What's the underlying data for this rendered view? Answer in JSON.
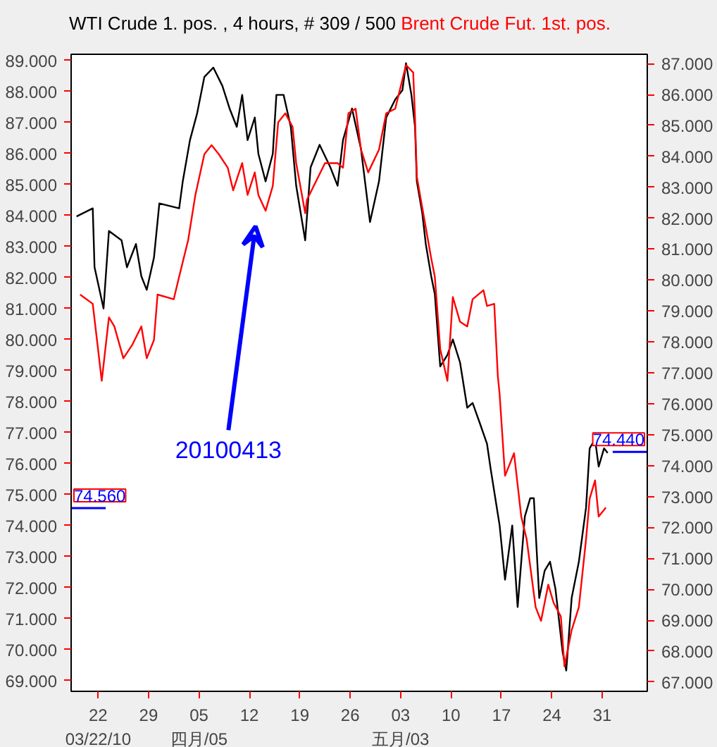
{
  "chart_data": {
    "type": "line",
    "legend": "top",
    "marker": "none",
    "line_style": "solid",
    "grid": false,
    "xlim": [
      "2010-03-18T06:00",
      "2010-06-06T06:00"
    ],
    "xticks": [
      {
        "value": "2010-03-22",
        "label": "22\n03/22/10"
      },
      {
        "value": "2010-03-29",
        "label": "29"
      },
      {
        "value": "2010-04-05",
        "label": "05\n四月/05"
      },
      {
        "value": "2010-04-12",
        "label": "12"
      },
      {
        "value": "2010-04-19",
        "label": "19"
      },
      {
        "value": "2010-04-26",
        "label": "26"
      },
      {
        "value": "2010-05-03",
        "label": "03\n五月/03"
      },
      {
        "value": "2010-05-10",
        "label": "10"
      },
      {
        "value": "2010-05-17",
        "label": "17"
      },
      {
        "value": "2010-05-24",
        "label": "24"
      },
      {
        "value": "2010-05-31",
        "label": "31"
      }
    ],
    "ylim": [
      68.65,
      89.2
    ],
    "yticks": [
      {
        "value": 69,
        "label": "69.000"
      },
      {
        "value": 70,
        "label": "70.000"
      },
      {
        "value": 71,
        "label": "71.000"
      },
      {
        "value": 72,
        "label": "72.000"
      },
      {
        "value": 73,
        "label": "73.000"
      },
      {
        "value": 74,
        "label": "74.000"
      },
      {
        "value": 75,
        "label": "75.000"
      },
      {
        "value": 76,
        "label": "76.000"
      },
      {
        "value": 77,
        "label": "77.000"
      },
      {
        "value": 78,
        "label": "78.000"
      },
      {
        "value": 79,
        "label": "79.000"
      },
      {
        "value": 80,
        "label": "80.000"
      },
      {
        "value": 81,
        "label": "81.000"
      },
      {
        "value": 82,
        "label": "82.000"
      },
      {
        "value": 83,
        "label": "83.000"
      },
      {
        "value": 84,
        "label": "84.000"
      },
      {
        "value": 85,
        "label": "85.000"
      },
      {
        "value": 86,
        "label": "86.000"
      },
      {
        "value": 87,
        "label": "87.000"
      },
      {
        "value": 88,
        "label": "88.000"
      },
      {
        "value": 89,
        "label": "89.000"
      }
    ],
    "y2lim": [
      66.7,
      87.3
    ],
    "y2ticks": [
      {
        "value": 67,
        "label": "67.000"
      },
      {
        "value": 68,
        "label": "68.000"
      },
      {
        "value": 69,
        "label": "69.000"
      },
      {
        "value": 70,
        "label": "70.000"
      },
      {
        "value": 71,
        "label": "71.000"
      },
      {
        "value": 72,
        "label": "72.000"
      },
      {
        "value": 73,
        "label": "73.000"
      },
      {
        "value": 74,
        "label": "74.000"
      },
      {
        "value": 75,
        "label": "75.000"
      },
      {
        "value": 76,
        "label": "76.000"
      },
      {
        "value": 77,
        "label": "77.000"
      },
      {
        "value": 78,
        "label": "78.000"
      },
      {
        "value": 79,
        "label": "79.000"
      },
      {
        "value": 80,
        "label": "80.000"
      },
      {
        "value": 81,
        "label": "81.000"
      },
      {
        "value": 82,
        "label": "82.000"
      },
      {
        "value": 83,
        "label": "83.000"
      },
      {
        "value": 84,
        "label": "84.000"
      },
      {
        "value": 85,
        "label": "85.000"
      },
      {
        "value": 86,
        "label": "86.000"
      },
      {
        "value": 87,
        "label": "87.000"
      }
    ],
    "series": [
      {
        "name": "WTI Crude 1. pos. , 4 hours, # 309 / 500",
        "color": "#000000",
        "axis": "y",
        "x": [
          "2010-03-19T00:00",
          "2010-03-21T06:00",
          "2010-03-21T12:00",
          "2010-03-22T18:00",
          "2010-03-23T12:00",
          "2010-03-25T06:00",
          "2010-03-26T00:00",
          "2010-03-27T06:00",
          "2010-03-28T00:00",
          "2010-03-28T18:00",
          "2010-03-29T18:00",
          "2010-03-30T12:00",
          "2010-04-02T06:00",
          "2010-04-02T18:00",
          "2010-04-03T18:00",
          "2010-04-04T18:00",
          "2010-04-05T18:00",
          "2010-04-07T00:00",
          "2010-04-08T06:00",
          "2010-04-09T06:00",
          "2010-04-10T06:00",
          "2010-04-11T00:00",
          "2010-04-11T18:00",
          "2010-04-12T18:00",
          "2010-04-13T06:00",
          "2010-04-14T06:00",
          "2010-04-15T06:00",
          "2010-04-15T18:00",
          "2010-04-16T18:00",
          "2010-04-17T18:00",
          "2010-04-18T12:00",
          "2010-04-19T18:00",
          "2010-04-20T12:00",
          "2010-04-21T18:00",
          "2010-04-23T06:00",
          "2010-04-24T06:00",
          "2010-04-25T00:00",
          "2010-04-26T06:00",
          "2010-04-27T12:00",
          "2010-04-28T18:00",
          "2010-04-30T00:00",
          "2010-05-01T00:00",
          "2010-05-02T06:00",
          "2010-05-03T06:00",
          "2010-05-03T18:00",
          "2010-05-04T12:00",
          "2010-05-05T00:00",
          "2010-05-05T06:00",
          "2010-05-06T00:00",
          "2010-05-06T12:00",
          "2010-05-07T06:00",
          "2010-05-07T18:00",
          "2010-05-08T12:00",
          "2010-05-09T12:00",
          "2010-05-10T06:00",
          "2010-05-11T06:00",
          "2010-05-12T06:00",
          "2010-05-13T00:00",
          "2010-05-14T00:00",
          "2010-05-15T00:00",
          "2010-05-15T12:00",
          "2010-05-16T06:00",
          "2010-05-16T18:00",
          "2010-05-17T12:00",
          "2010-05-18T12:00",
          "2010-05-19T06:00",
          "2010-05-20T06:00",
          "2010-05-21T00:00",
          "2010-05-21T12:00",
          "2010-05-22T06:00",
          "2010-05-23T00:00",
          "2010-05-23T18:00",
          "2010-05-24T12:00",
          "2010-05-25T12:00",
          "2010-05-26T00:00",
          "2010-05-26T18:00",
          "2010-05-27T18:00",
          "2010-05-28T18:00",
          "2010-05-29T06:00",
          "2010-05-30T00:00",
          "2010-05-30T12:00",
          "2010-05-31T06:00",
          "2010-05-31T18:00"
        ],
        "values": [
          83.97,
          84.23,
          82.33,
          81.0,
          83.5,
          83.2,
          82.33,
          83.08,
          82.04,
          81.6,
          82.64,
          84.39,
          84.23,
          85.1,
          86.43,
          87.3,
          88.47,
          88.77,
          88.18,
          87.45,
          86.86,
          87.89,
          86.43,
          87.16,
          85.99,
          85.1,
          85.99,
          87.89,
          87.89,
          86.86,
          84.96,
          83.2,
          85.55,
          86.28,
          85.55,
          84.96,
          86.43,
          87.45,
          86.14,
          83.79,
          85.1,
          87.16,
          87.74,
          88.04,
          88.91,
          87.89,
          86.86,
          85.1,
          84.09,
          83.07,
          82.04,
          81.46,
          79.13,
          79.5,
          80.0,
          79.26,
          77.8,
          77.95,
          77.3,
          76.63,
          75.83,
          74.73,
          74.0,
          72.25,
          74.0,
          71.37,
          74.29,
          74.88,
          74.88,
          71.66,
          72.54,
          72.83,
          71.95,
          69.91,
          69.32,
          71.66,
          72.83,
          74.58,
          76.49,
          76.78,
          75.9,
          76.49,
          76.34
        ]
      },
      {
        "name": "Brent Crude Fut. 1st. pos.",
        "color": "#ff0000",
        "axis": "y2",
        "x": [
          "2010-03-19T12:00",
          "2010-03-21T06:00",
          "2010-03-22T12:00",
          "2010-03-23T12:00",
          "2010-03-24T06:00",
          "2010-03-25T12:00",
          "2010-03-26T18:00",
          "2010-03-28T00:00",
          "2010-03-28T18:00",
          "2010-03-29T18:00",
          "2010-03-30T06:00",
          "2010-04-01T12:00",
          "2010-04-02T06:00",
          "2010-04-03T12:00",
          "2010-04-04T12:00",
          "2010-04-05T18:00",
          "2010-04-06T18:00",
          "2010-04-07T18:00",
          "2010-04-09T00:00",
          "2010-04-09T18:00",
          "2010-04-11T00:00",
          "2010-04-11T18:00",
          "2010-04-12T18:00",
          "2010-04-13T06:00",
          "2010-04-14T06:00",
          "2010-04-15T06:00",
          "2010-04-16T00:00",
          "2010-04-17T00:00",
          "2010-04-18T00:00",
          "2010-04-18T12:00",
          "2010-04-19T18:00",
          "2010-04-20T00:00",
          "2010-04-21T06:00",
          "2010-04-22T12:00",
          "2010-04-24T06:00",
          "2010-04-25T00:00",
          "2010-04-25T18:00",
          "2010-04-26T18:00",
          "2010-04-27T12:00",
          "2010-04-28T12:00",
          "2010-04-30T00:00",
          "2010-05-01T00:00",
          "2010-05-02T06:00",
          "2010-05-03T18:00",
          "2010-05-04T18:00",
          "2010-05-05T00:00",
          "2010-05-05T06:00",
          "2010-05-06T06:00",
          "2010-05-07T06:00",
          "2010-05-07T18:00",
          "2010-05-08T12:00",
          "2010-05-09T12:00",
          "2010-05-10T06:00",
          "2010-05-11T06:00",
          "2010-05-12T06:00",
          "2010-05-13T00:00",
          "2010-05-14T12:00",
          "2010-05-15T00:00",
          "2010-05-16T00:00",
          "2010-05-16T12:00",
          "2010-05-16T18:00",
          "2010-05-17T12:00",
          "2010-05-18T18:00",
          "2010-05-19T18:00",
          "2010-05-20T12:00",
          "2010-05-21T18:00",
          "2010-05-22T12:00",
          "2010-05-23T12:00",
          "2010-05-24T06:00",
          "2010-05-25T06:00",
          "2010-05-25T18:00",
          "2010-05-26T18:00",
          "2010-05-27T18:00",
          "2010-05-28T18:00",
          "2010-05-29T06:00",
          "2010-05-30T00:00",
          "2010-05-30T12:00",
          "2010-05-31T12:00"
        ],
        "values": [
          79.53,
          79.23,
          76.74,
          78.79,
          78.5,
          77.47,
          77.91,
          78.5,
          77.47,
          78.06,
          79.53,
          79.38,
          80.11,
          81.29,
          82.75,
          84.07,
          84.36,
          84.07,
          83.63,
          82.9,
          83.78,
          82.75,
          83.48,
          82.75,
          82.24,
          83.04,
          85.1,
          85.39,
          84.95,
          83.78,
          82.16,
          82.6,
          83.19,
          83.78,
          83.78,
          83.63,
          85.39,
          85.54,
          84.22,
          83.48,
          84.22,
          85.39,
          85.54,
          86.95,
          86.71,
          85.24,
          83.34,
          82.02,
          80.7,
          80.11,
          77.77,
          76.74,
          79.45,
          78.65,
          78.5,
          79.38,
          79.67,
          79.16,
          79.23,
          76.89,
          76.3,
          73.67,
          74.4,
          72.35,
          71.62,
          69.42,
          68.98,
          70.15,
          69.56,
          69.12,
          67.51,
          68.68,
          69.42,
          71.62,
          72.93,
          73.52,
          72.35,
          72.64
        ]
      }
    ],
    "ref_lines": [
      {
        "axis": "y",
        "value": 74.56,
        "label": "74.560",
        "color": "#0000ff"
      },
      {
        "axis": "y2",
        "value": 74.44,
        "label": "74.440",
        "color": "#0000ff"
      }
    ],
    "annotations": [
      "20100413"
    ]
  }
}
